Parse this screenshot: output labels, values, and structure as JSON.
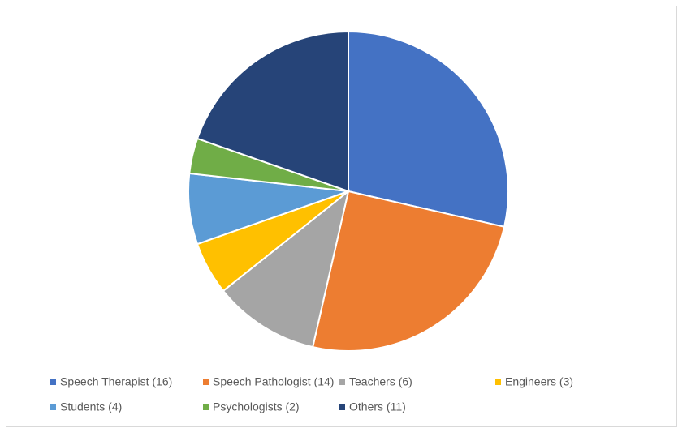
{
  "chart_data": {
    "type": "pie",
    "categories": [
      "Speech Therapist (16)",
      "Speech Pathologist (14)",
      "Teachers (6)",
      "Engineers (3)",
      "Students (4)",
      "Psychologists (2)",
      "Others (11)"
    ],
    "values": [
      16,
      14,
      6,
      3,
      4,
      2,
      11
    ],
    "colors": [
      "#4472c4",
      "#ed7d31",
      "#a5a5a5",
      "#ffc000",
      "#5b9bd5",
      "#70ad47",
      "#264478"
    ],
    "legend": "bottom"
  }
}
